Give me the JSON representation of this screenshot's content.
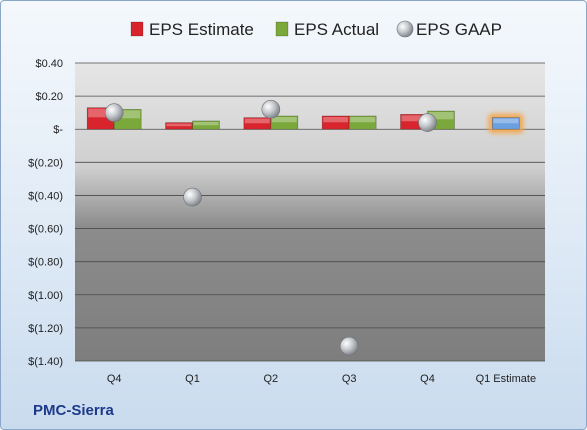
{
  "company": "PMC-Sierra",
  "chart_data": {
    "type": "bar",
    "categories": [
      "Q4",
      "Q1",
      "Q2",
      "Q3",
      "Q4",
      "Q1 Estimate"
    ],
    "series": [
      {
        "name": "EPS Estimate",
        "type": "bar",
        "color": "#d8242c",
        "values": [
          0.13,
          0.04,
          0.07,
          0.08,
          0.09,
          null
        ]
      },
      {
        "name": "EPS Actual",
        "type": "bar",
        "color": "#7aa83a",
        "values": [
          0.12,
          0.05,
          0.08,
          0.08,
          0.11,
          null
        ]
      },
      {
        "name": "EPS GAAP",
        "type": "scatter",
        "color": "#b8bcc2",
        "values": [
          0.1,
          -0.41,
          0.12,
          -1.31,
          0.04,
          null
        ]
      },
      {
        "name": "",
        "type": "bar",
        "color": "#6a9fe0",
        "highlight": "#f5a64a",
        "values": [
          null,
          null,
          null,
          null,
          null,
          0.07
        ]
      }
    ],
    "y_ticks": [
      0.4,
      0.2,
      0,
      -0.2,
      -0.4,
      -0.6,
      -0.8,
      -1.0,
      -1.2,
      -1.4
    ],
    "y_tick_labels": [
      "$0.40",
      "$0.20",
      "$-",
      "$(0.20)",
      "$(0.40)",
      "$(0.60)",
      "$(0.80)",
      "$(1.00)",
      "$(1.20)",
      "$(1.40)"
    ],
    "ylim": [
      -1.4,
      0.4
    ],
    "grid": true,
    "legend_position": "top"
  }
}
